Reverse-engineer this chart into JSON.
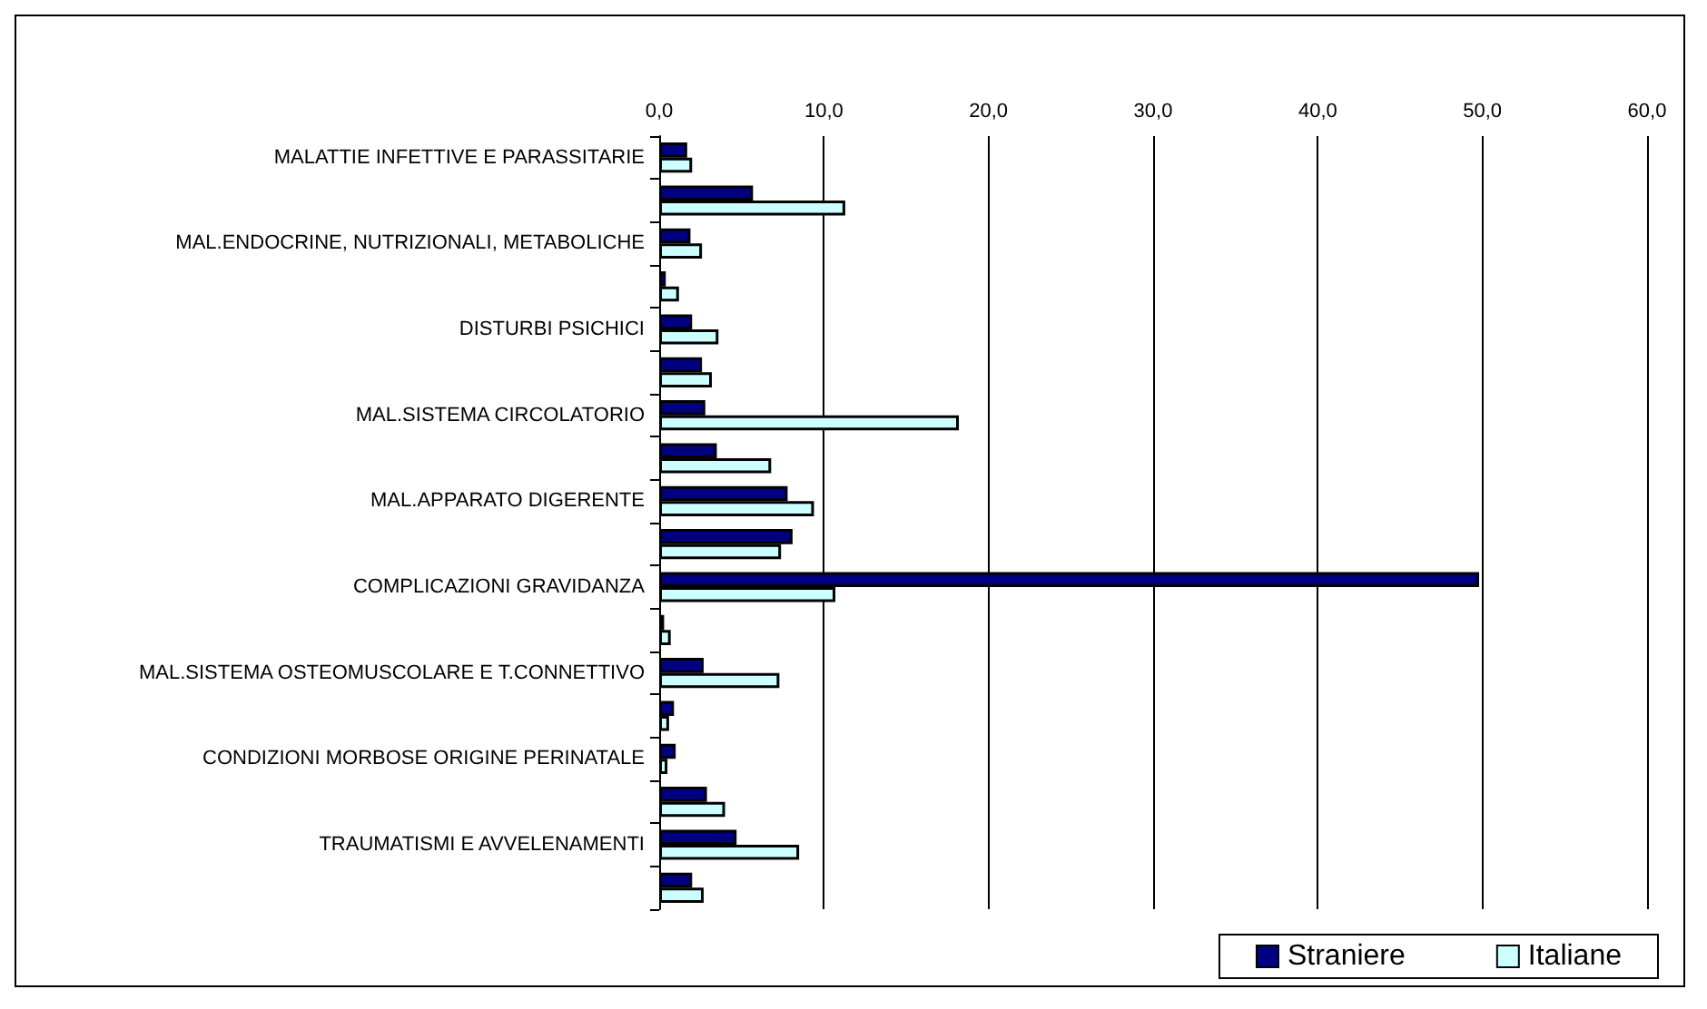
{
  "chart_data": {
    "type": "bar",
    "orientation": "horizontal",
    "categories": [
      "MALATTIE INFETTIVE E PARASSITARIE",
      null,
      "MAL.ENDOCRINE, NUTRIZIONALI, METABOLICHE",
      null,
      "DISTURBI PSICHICI",
      null,
      "MAL.SISTEMA CIRCOLATORIO",
      null,
      "MAL.APPARATO DIGERENTE",
      null,
      "COMPLICAZIONI GRAVIDANZA",
      null,
      "MAL.SISTEMA OSTEOMUSCOLARE E T.CONNETTIVO",
      null,
      "CONDIZIONI MORBOSE ORIGINE PERINATALE",
      null,
      "TRAUMATISMI E AVVELENAMENTI",
      null
    ],
    "series": [
      {
        "name": "Straniere",
        "color": "#000080",
        "values": [
          1.7,
          5.7,
          1.9,
          0.4,
          2.0,
          2.6,
          2.8,
          3.5,
          7.8,
          8.1,
          49.8,
          0.3,
          2.7,
          0.9,
          1.0,
          2.9,
          4.7,
          2.0
        ]
      },
      {
        "name": "Italiane",
        "color": "#ccffff",
        "values": [
          2.0,
          11.3,
          2.6,
          1.2,
          3.6,
          3.2,
          18.2,
          6.8,
          9.4,
          7.4,
          10.7,
          0.7,
          7.3,
          0.6,
          0.5,
          4.0,
          8.5,
          2.7
        ]
      }
    ],
    "xlim": [
      0,
      60
    ],
    "xticks": [
      {
        "value": 0,
        "label": "0,0"
      },
      {
        "value": 10,
        "label": "10,0"
      },
      {
        "value": 20,
        "label": "20,0"
      },
      {
        "value": 30,
        "label": "30,0"
      },
      {
        "value": 40,
        "label": "40,0"
      },
      {
        "value": 50,
        "label": "50,0"
      },
      {
        "value": 60,
        "label": "60,0"
      }
    ],
    "grid": "x",
    "legend": "bottom right"
  }
}
